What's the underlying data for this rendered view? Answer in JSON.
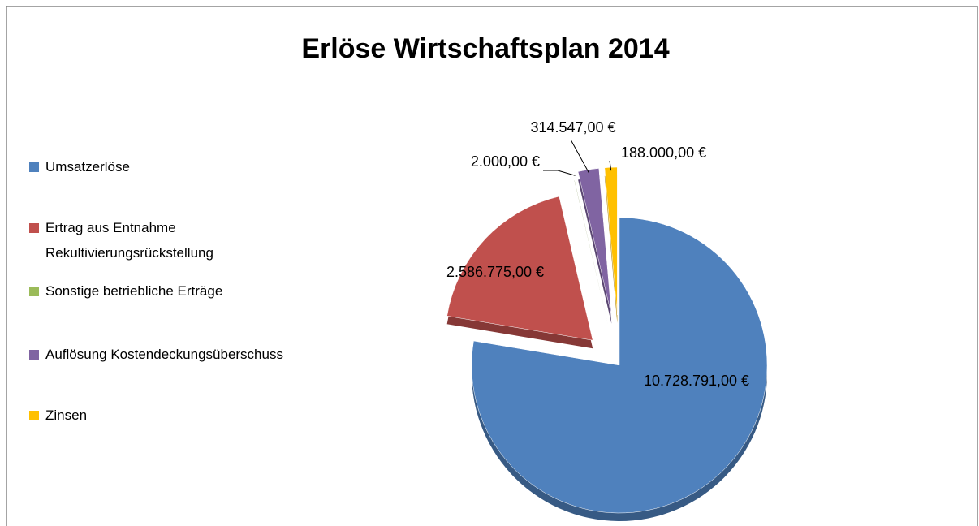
{
  "chart_data": {
    "type": "pie",
    "title": "Erlöse Wirtschaftsplan 2014",
    "categories": [
      "Umsatzerlöse",
      "Ertrag aus Entnahme Rekultivierungsrückstellung",
      "Sonstige betriebliche Erträge",
      "Auflösung Kostendeckungsüberschuss",
      "Zinsen"
    ],
    "values": [
      10728791,
      2586775,
      2000,
      314547,
      188000
    ],
    "value_labels": [
      "10.728.791,00 €",
      "2.586.775,00 €",
      "2.000,00 €",
      "314.547,00 €",
      "188.000,00 €"
    ],
    "colors": [
      "#4f81bd",
      "#c0504d",
      "#9bbb59",
      "#8064a2",
      "#ffc000"
    ],
    "legend": "left"
  }
}
